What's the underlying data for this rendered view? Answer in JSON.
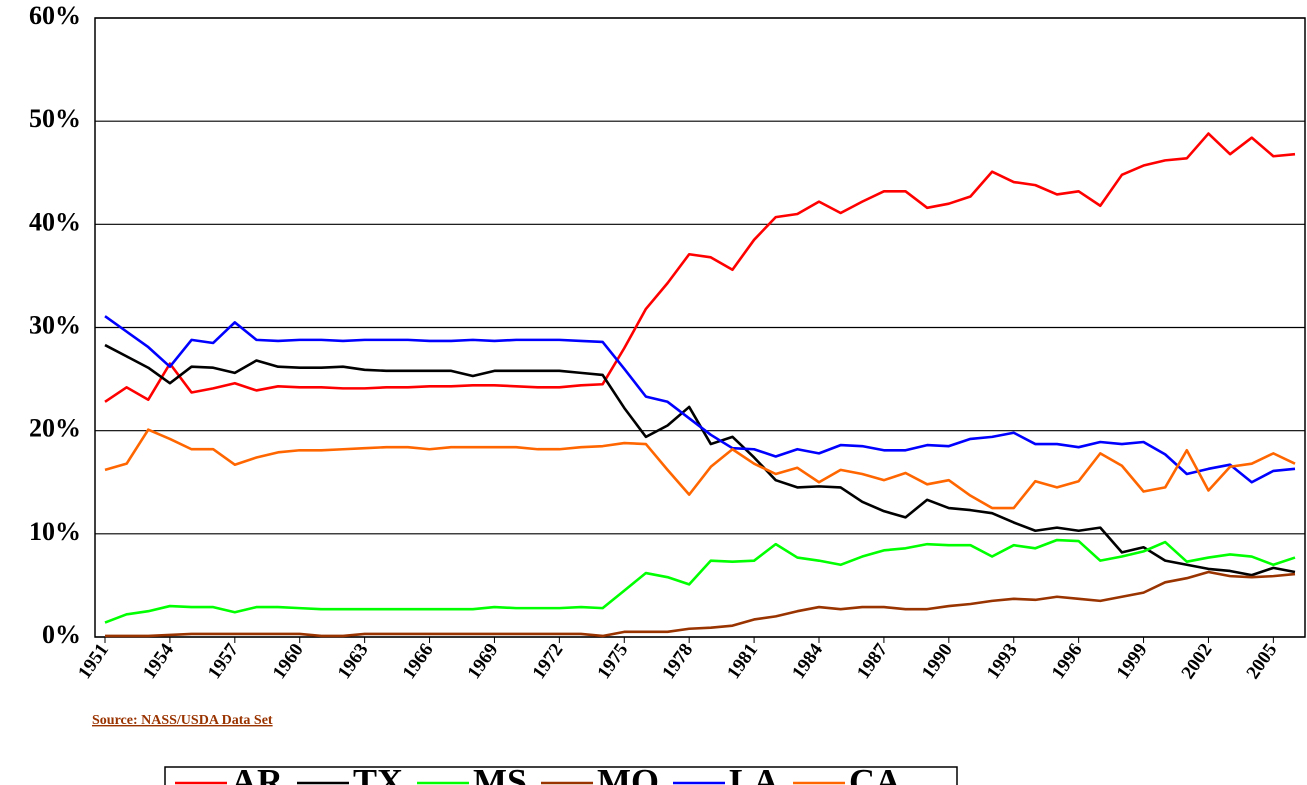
{
  "chart_data": {
    "type": "line",
    "source": "Source:  NASS/USDA Data Set",
    "x": [
      1951,
      1952,
      1953,
      1954,
      1955,
      1956,
      1957,
      1958,
      1959,
      1960,
      1961,
      1962,
      1963,
      1964,
      1965,
      1966,
      1967,
      1968,
      1969,
      1970,
      1971,
      1972,
      1973,
      1974,
      1975,
      1976,
      1977,
      1978,
      1979,
      1980,
      1981,
      1982,
      1983,
      1984,
      1985,
      1986,
      1987,
      1988,
      1989,
      1990,
      1991,
      1992,
      1993,
      1994,
      1995,
      1996,
      1997,
      1998,
      1999,
      2000,
      2001,
      2002,
      2003,
      2004,
      2005,
      2006
    ],
    "xlim": [
      1951,
      2006
    ],
    "xticks": [
      1951,
      1954,
      1957,
      1960,
      1963,
      1966,
      1969,
      1972,
      1975,
      1978,
      1981,
      1984,
      1987,
      1990,
      1993,
      1996,
      1999,
      2002,
      2005
    ],
    "ylim": [
      0,
      60
    ],
    "yticks": [
      {
        "value": 0,
        "label": "0%"
      },
      {
        "value": 10,
        "label": "10%"
      },
      {
        "value": 20,
        "label": "20%"
      },
      {
        "value": 30,
        "label": "30%"
      },
      {
        "value": 40,
        "label": "40%"
      },
      {
        "value": 50,
        "label": "50%"
      },
      {
        "value": 60,
        "label": "60%"
      }
    ],
    "grid": true,
    "legend": "bottom",
    "series": [
      {
        "name": "AR",
        "color": "#ff0000",
        "values": [
          22.8,
          24.2,
          23.0,
          26.5,
          23.7,
          24.1,
          24.6,
          23.9,
          24.3,
          24.2,
          24.2,
          24.1,
          24.1,
          24.2,
          24.2,
          24.3,
          24.3,
          24.4,
          24.4,
          24.3,
          24.2,
          24.2,
          24.4,
          24.5,
          28.0,
          31.8,
          34.3,
          37.1,
          36.8,
          35.6,
          38.5,
          40.7,
          41.0,
          42.2,
          41.1,
          42.2,
          43.2,
          43.2,
          41.6,
          42.0,
          42.7,
          45.1,
          44.1,
          43.8,
          42.9,
          43.2,
          41.8,
          44.8,
          45.7,
          46.2,
          46.4,
          48.8,
          46.8,
          48.4,
          46.6,
          46.8
        ]
      },
      {
        "name": "TX",
        "color": "#000000",
        "values": [
          28.3,
          27.2,
          26.1,
          24.6,
          26.2,
          26.1,
          25.6,
          26.8,
          26.2,
          26.1,
          26.1,
          26.2,
          25.9,
          25.8,
          25.8,
          25.8,
          25.8,
          25.3,
          25.8,
          25.8,
          25.8,
          25.8,
          25.6,
          25.4,
          22.2,
          19.4,
          20.5,
          22.3,
          18.7,
          19.4,
          17.4,
          15.2,
          14.5,
          14.6,
          14.5,
          13.1,
          12.2,
          11.6,
          13.3,
          12.5,
          12.3,
          12.0,
          11.1,
          10.3,
          10.6,
          10.3,
          10.6,
          8.2,
          8.7,
          7.4,
          7.0,
          6.6,
          6.4,
          6.0,
          6.7,
          6.3
        ]
      },
      {
        "name": "MS",
        "color": "#00ff00",
        "values": [
          1.4,
          2.2,
          2.5,
          3.0,
          2.9,
          2.9,
          2.4,
          2.9,
          2.9,
          2.8,
          2.7,
          2.7,
          2.7,
          2.7,
          2.7,
          2.7,
          2.7,
          2.7,
          2.9,
          2.8,
          2.8,
          2.8,
          2.9,
          2.8,
          4.5,
          6.2,
          5.8,
          5.1,
          7.4,
          7.3,
          7.4,
          9.0,
          7.7,
          7.4,
          7.0,
          7.8,
          8.4,
          8.6,
          9.0,
          8.9,
          8.9,
          7.8,
          8.9,
          8.6,
          9.4,
          9.3,
          7.4,
          7.8,
          8.3,
          9.2,
          7.3,
          7.7,
          8.0,
          7.8,
          7.0,
          7.7
        ]
      },
      {
        "name": "MO",
        "color": "#993300",
        "values": [
          0.1,
          0.1,
          0.1,
          0.2,
          0.3,
          0.3,
          0.3,
          0.3,
          0.3,
          0.3,
          0.1,
          0.1,
          0.3,
          0.3,
          0.3,
          0.3,
          0.3,
          0.3,
          0.3,
          0.3,
          0.3,
          0.3,
          0.3,
          0.1,
          0.5,
          0.5,
          0.5,
          0.8,
          0.9,
          1.1,
          1.7,
          2.0,
          2.5,
          2.9,
          2.7,
          2.9,
          2.9,
          2.7,
          2.7,
          3.0,
          3.2,
          3.5,
          3.7,
          3.6,
          3.9,
          3.7,
          3.5,
          3.9,
          4.3,
          5.3,
          5.7,
          6.3,
          5.9,
          5.8,
          5.9,
          6.1
        ]
      },
      {
        "name": "LA",
        "color": "#0000ff",
        "values": [
          31.1,
          29.6,
          28.1,
          26.2,
          28.8,
          28.5,
          30.5,
          28.8,
          28.7,
          28.8,
          28.8,
          28.7,
          28.8,
          28.8,
          28.8,
          28.7,
          28.7,
          28.8,
          28.7,
          28.8,
          28.8,
          28.8,
          28.7,
          28.6,
          26.0,
          23.3,
          22.8,
          21.2,
          19.6,
          18.3,
          18.2,
          17.5,
          18.2,
          17.8,
          18.6,
          18.5,
          18.1,
          18.1,
          18.6,
          18.5,
          19.2,
          19.4,
          19.8,
          18.7,
          18.7,
          18.4,
          18.9,
          18.7,
          18.9,
          17.7,
          15.8,
          16.3,
          16.7,
          15.0,
          16.1,
          16.3
        ]
      },
      {
        "name": "CA",
        "color": "#ff6600",
        "values": [
          16.2,
          16.8,
          20.1,
          19.2,
          18.2,
          18.2,
          16.7,
          17.4,
          17.9,
          18.1,
          18.1,
          18.2,
          18.3,
          18.4,
          18.4,
          18.2,
          18.4,
          18.4,
          18.4,
          18.4,
          18.2,
          18.2,
          18.4,
          18.5,
          18.8,
          18.7,
          16.2,
          13.8,
          16.5,
          18.2,
          16.8,
          15.8,
          16.4,
          15.0,
          16.2,
          15.8,
          15.2,
          15.9,
          14.8,
          15.2,
          13.7,
          12.5,
          12.5,
          15.1,
          14.5,
          15.1,
          17.8,
          16.6,
          14.1,
          14.5,
          18.1,
          14.2,
          16.5,
          16.8,
          17.8,
          16.8
        ]
      }
    ]
  }
}
